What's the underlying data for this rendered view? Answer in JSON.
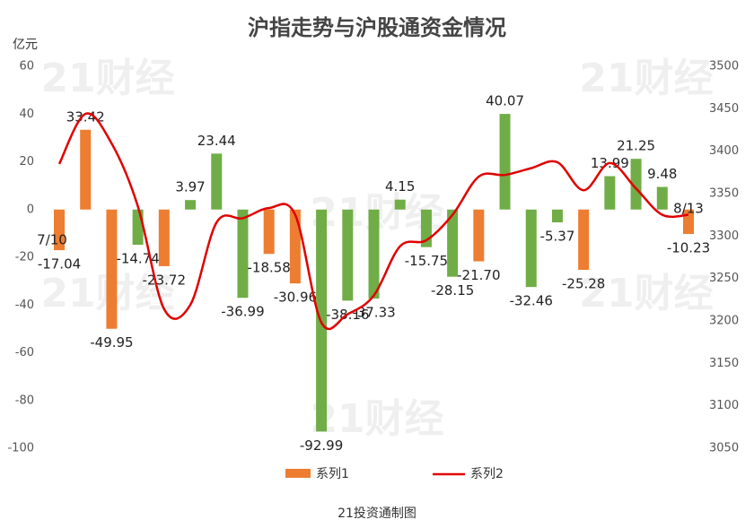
{
  "chart_data": {
    "type": "bar_line",
    "title": "沪指走势与沪股通资金情况",
    "y_label": "亿元",
    "footer": "21投资通制图",
    "watermark": "21财经",
    "annotations": [
      "7/10",
      "8/13"
    ],
    "ylim": [
      -100,
      60
    ],
    "yticks": [
      -100,
      -80,
      -60,
      -40,
      -20,
      0,
      20,
      40,
      60
    ],
    "y2lim": [
      3050,
      3500
    ],
    "y2ticks": [
      3050,
      3100,
      3150,
      3200,
      3250,
      3300,
      3350,
      3400,
      3450,
      3500
    ],
    "series": [
      {
        "name": "系列1",
        "color": "#ed7d31",
        "colors": [
          "#ed7d31",
          "#ed7d31",
          "#ed7d31",
          "#70ad47",
          "#ed7d31",
          "#70ad47",
          "#70ad47",
          "#70ad47",
          "#ed7d31",
          "#ed7d31",
          "#70ad47",
          "#70ad47",
          "#70ad47",
          "#70ad47",
          "#70ad47",
          "#70ad47",
          "#ed7d31",
          "#70ad47",
          "#70ad47",
          "#70ad47",
          "#ed7d31",
          "#70ad47",
          "#70ad47",
          "#70ad47",
          "#ed7d31"
        ],
        "values": [
          -17.04,
          33.42,
          -49.95,
          -14.74,
          -23.72,
          3.97,
          23.44,
          -36.99,
          -18.58,
          -30.96,
          -92.99,
          -38.16,
          -37.33,
          4.15,
          -15.75,
          -28.15,
          -21.7,
          40.07,
          -32.46,
          -5.37,
          -25.28,
          13.99,
          21.25,
          9.48,
          -10.23
        ],
        "value_labels": [
          "-17.04",
          "33.42",
          "-49.95",
          "-14.74",
          "-23.72",
          "3.97",
          "23.44",
          "-36.99",
          "-18.58",
          "-30.96",
          "-92.99",
          "-38.16",
          "-37.33",
          "4.15",
          "-15.75",
          "-28.15",
          "-21.70",
          "40.07",
          "-32.46",
          "-5.37",
          "-25.28",
          "13.99",
          "21.25",
          "9.48",
          "-10.23"
        ]
      },
      {
        "name": "系列2",
        "color": "#e00000",
        "axis": "y2",
        "values": [
          3385,
          3444,
          3409,
          3335,
          3214,
          3219,
          3316,
          3321,
          3333,
          3325,
          3198,
          3208,
          3230,
          3288,
          3295,
          3325,
          3370,
          3372,
          3380,
          3387,
          3354,
          3386,
          3356,
          3325,
          3325
        ]
      }
    ]
  }
}
